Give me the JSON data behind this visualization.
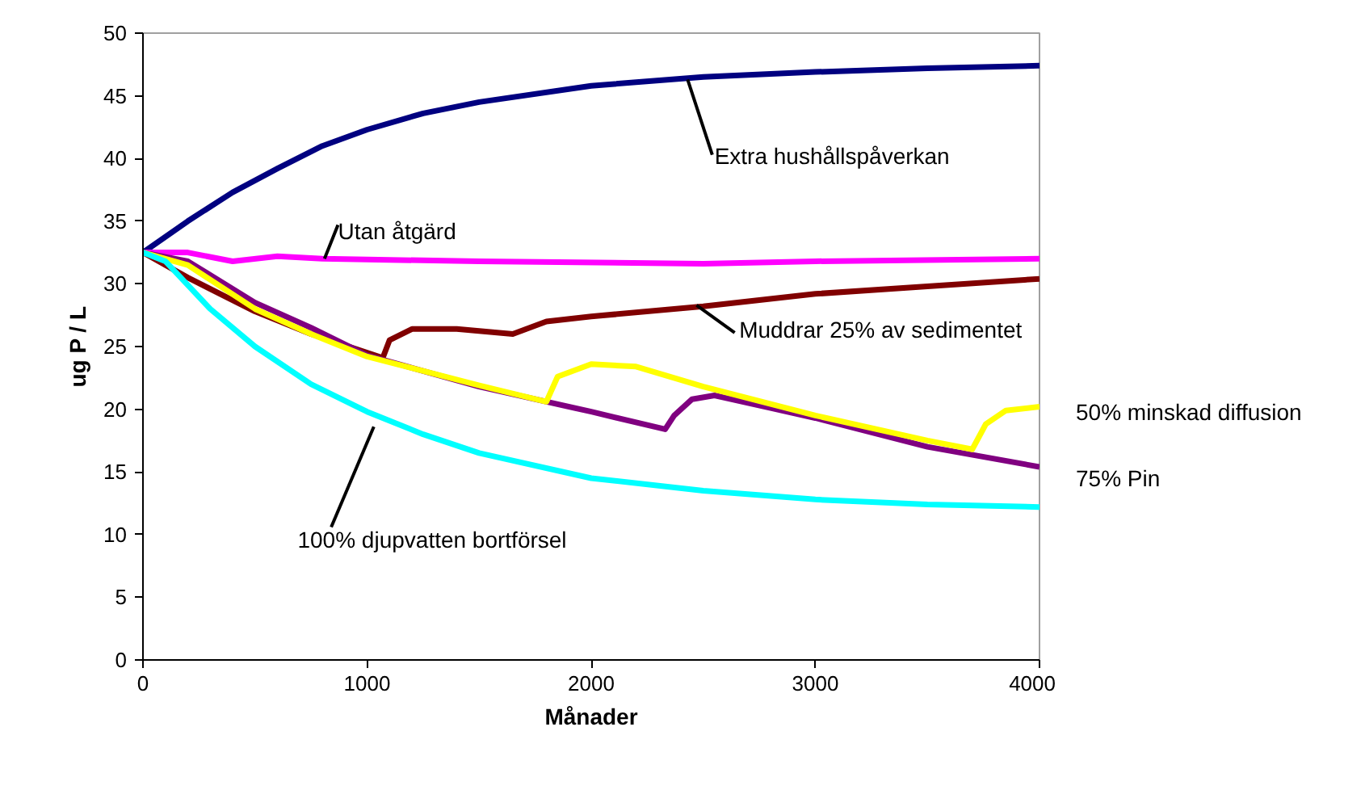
{
  "chart_data": {
    "type": "line",
    "xlabel": "Månader",
    "ylabel": "ug P / L",
    "xlim": [
      0,
      4000
    ],
    "ylim": [
      0,
      50
    ],
    "xticks": [
      0,
      1000,
      2000,
      3000,
      4000
    ],
    "yticks": [
      0,
      5,
      10,
      15,
      20,
      25,
      30,
      35,
      40,
      45,
      50
    ],
    "grid": false,
    "legend": false,
    "marker": "none",
    "line_style": "solid",
    "series": [
      {
        "name": "Extra hushållspåverkan",
        "color": "#000080",
        "x": [
          0,
          200,
          400,
          600,
          800,
          1000,
          1250,
          1500,
          2000,
          2500,
          3000,
          3500,
          4000
        ],
        "values": [
          32.5,
          35,
          37.3,
          39.2,
          41,
          42.3,
          43.6,
          44.5,
          45.8,
          46.5,
          46.9,
          47.2,
          47.4
        ]
      },
      {
        "name": "Utan åtgärd",
        "color": "#ff00ff",
        "x": [
          0,
          200,
          400,
          600,
          800,
          1500,
          2500,
          3000,
          4000
        ],
        "values": [
          32.5,
          32.5,
          31.8,
          32.2,
          32,
          31.8,
          31.6,
          31.8,
          32
        ]
      },
      {
        "name": "Muddrar 25% av sedimentet",
        "color": "#800000",
        "x": [
          0,
          200,
          500,
          750,
          1070,
          1100,
          1200,
          1400,
          1650,
          1800,
          2000,
          2500,
          3000,
          3500,
          4000
        ],
        "values": [
          32.5,
          30.5,
          27.8,
          26,
          24.1,
          25.5,
          26.4,
          26.4,
          26,
          27,
          27.4,
          28.2,
          29.2,
          29.8,
          30.4
        ]
      },
      {
        "name": "75% Pin",
        "color": "#800080",
        "x": [
          0,
          200,
          500,
          750,
          1000,
          1500,
          2000,
          2330,
          2370,
          2450,
          2550,
          3000,
          3500,
          4000
        ],
        "values": [
          32.5,
          31.8,
          28.5,
          26.5,
          24.3,
          21.8,
          19.8,
          18.4,
          19.5,
          20.8,
          21.1,
          19.3,
          17,
          15.4
        ]
      },
      {
        "name": "50% minskad diffusion",
        "color": "#ffff00",
        "x": [
          0,
          200,
          500,
          750,
          1000,
          1500,
          1800,
          1850,
          2000,
          2200,
          2500,
          3000,
          3500,
          3700,
          3760,
          3850,
          4000
        ],
        "values": [
          32.5,
          31.5,
          28,
          26,
          24.2,
          21.9,
          20.6,
          22.6,
          23.6,
          23.4,
          21.8,
          19.5,
          17.5,
          16.8,
          18.8,
          19.9,
          20.2
        ]
      },
      {
        "name": "100% djupvatten bortförsel",
        "color": "#00ffff",
        "x": [
          0,
          100,
          300,
          500,
          750,
          1000,
          1250,
          1500,
          2000,
          2500,
          3000,
          3500,
          4000
        ],
        "values": [
          32.5,
          31.8,
          28,
          25,
          22,
          19.8,
          18,
          16.5,
          14.5,
          13.5,
          12.8,
          12.4,
          12.2
        ]
      }
    ]
  }
}
